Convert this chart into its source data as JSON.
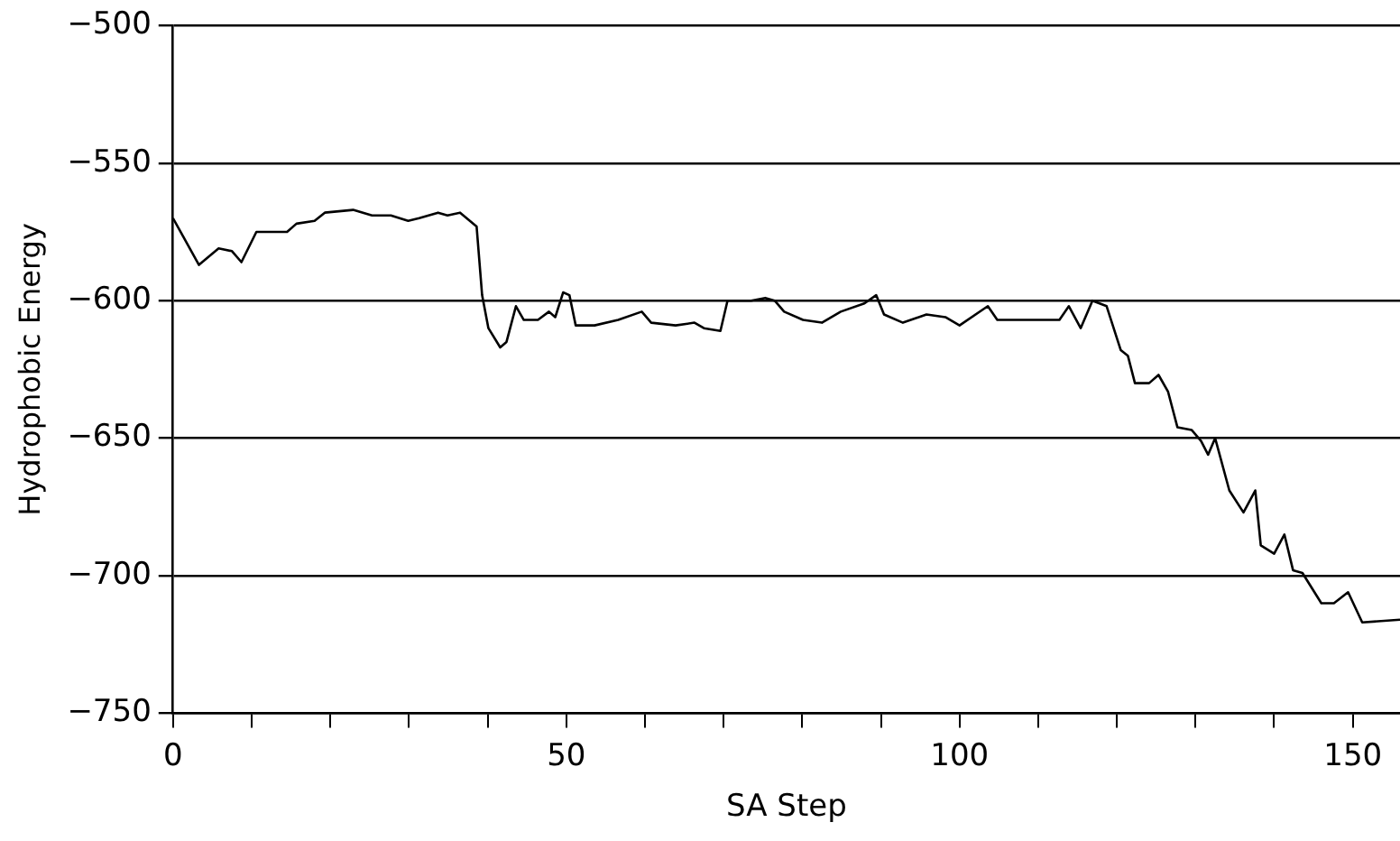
{
  "chart_data": {
    "type": "line",
    "xlabel": "SA Step",
    "ylabel": "Hydrophobic Energy",
    "x": [
      0,
      3.3,
      5.8,
      7.5,
      8.7,
      10.6,
      14.5,
      15.7,
      18,
      19.3,
      22.9,
      25.3,
      27.7,
      29.9,
      31.3,
      33.7,
      34.9,
      36.5,
      38.6,
      39.3,
      40.1,
      41.6,
      42.4,
      43.6,
      44.6,
      46.4,
      47.8,
      48.6,
      49.6,
      50.4,
      51.2,
      53.6,
      56.6,
      59.6,
      60.8,
      63.9,
      66.3,
      67.5,
      69.6,
      70.5,
      73.5,
      75.3,
      76.5,
      77.7,
      80.1,
      82.5,
      84.9,
      87.9,
      89.4,
      90.4,
      92.8,
      95.8,
      98.2,
      100,
      103.6,
      104.8,
      107.8,
      112.7,
      113.9,
      115.4,
      116.9,
      118.7,
      120.5,
      121.4,
      122.3,
      124.1,
      125.3,
      126.5,
      127.7,
      129.5,
      130.7,
      131.6,
      132.5,
      134.3,
      136.1,
      137.6,
      138.3,
      140,
      141.3,
      142.4,
      143.6,
      146,
      147.6,
      149.4,
      151.2,
      156
    ],
    "series": [
      {
        "color": "#000000",
        "values": [
          -570,
          -587,
          -581,
          -582,
          -586,
          -575,
          -575,
          -572,
          -571,
          -568,
          -567,
          -569,
          -569,
          -571,
          -570,
          -568,
          -569,
          -568,
          -573,
          -598,
          -610,
          -617,
          -615,
          -602,
          -607,
          -607,
          -604,
          -606,
          -597,
          -598,
          -609,
          -609,
          -607,
          -604,
          -608,
          -609,
          -608,
          -610,
          -611,
          -600,
          -600,
          -599,
          -600,
          -604,
          -607,
          -608,
          -604,
          -601,
          -598,
          -605,
          -608,
          -605,
          -606,
          -609,
          -602,
          -607,
          -607,
          -607,
          -602,
          -610,
          -600,
          -602,
          -618,
          -620,
          -630,
          -630,
          -627,
          -633,
          -646,
          -647,
          -651,
          -656,
          -650,
          -669,
          -677,
          -669,
          -689,
          -692,
          -685,
          -698,
          -699,
          -710,
          -710,
          -706,
          -717,
          -716
        ]
      }
    ],
    "xlim": [
      0,
      156
    ],
    "xticks": [
      0,
      {
        "value": 10,
        "label": null
      },
      {
        "value": 20,
        "label": null
      },
      {
        "value": 30,
        "label": null
      },
      {
        "value": 40,
        "label": null
      },
      50,
      {
        "value": 60,
        "label": null
      },
      {
        "value": 70,
        "label": null
      },
      {
        "value": 80,
        "label": null
      },
      {
        "value": 90,
        "label": null
      },
      100,
      {
        "value": 110,
        "label": null
      },
      {
        "value": 120,
        "label": null
      },
      {
        "value": 130,
        "label": null
      },
      {
        "value": 140,
        "label": null
      },
      150
    ],
    "ylim": [
      -750,
      -500
    ],
    "yticks": [
      -750,
      -700,
      -650,
      -600,
      -550,
      -500
    ],
    "grid": "y",
    "marker": "none",
    "line_style": "solid",
    "legend": false
  }
}
